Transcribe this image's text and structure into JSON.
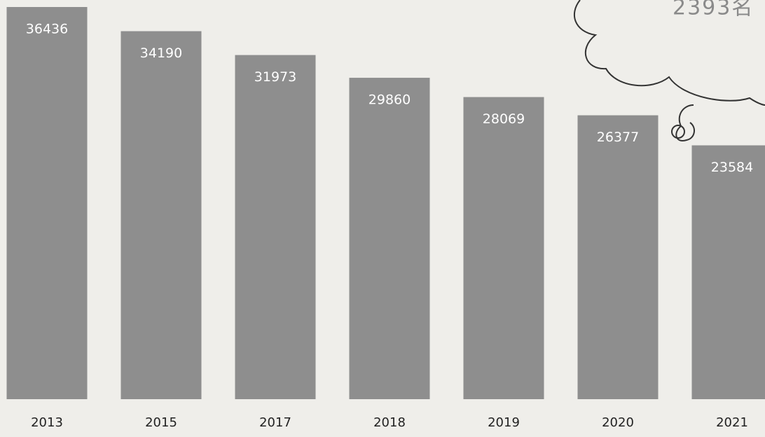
{
  "chart_data": {
    "type": "bar",
    "categories": [
      "2013",
      "2015",
      "2017",
      "2018",
      "2019",
      "2020",
      "2021"
    ],
    "values": [
      36436,
      34190,
      31973,
      29860,
      28069,
      26377,
      23584
    ],
    "color": "#8e8e8e",
    "annotation": "2393名"
  }
}
